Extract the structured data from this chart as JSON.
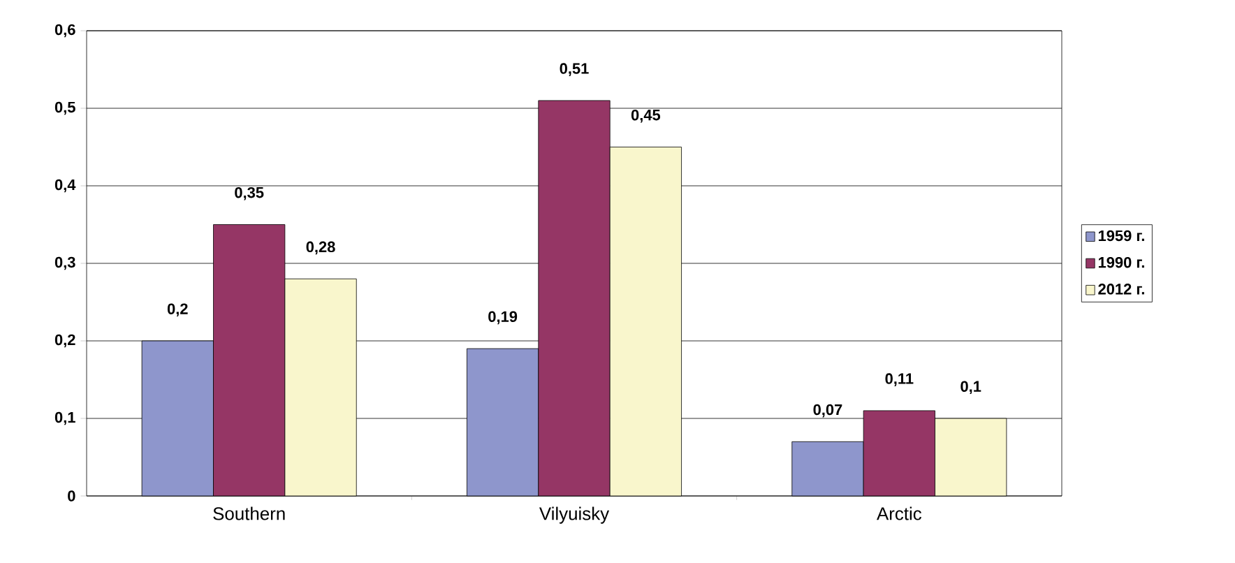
{
  "chart_data": {
    "type": "bar",
    "categories": [
      "Southern",
      "Vilyuisky",
      "Arctic"
    ],
    "series": [
      {
        "name": "1959 г.",
        "color": "#8e96cc",
        "values": [
          0.2,
          0.19,
          0.07
        ],
        "value_labels": [
          "0,2",
          "0,19",
          "0,07"
        ]
      },
      {
        "name": "1990 г.",
        "color": "#953665",
        "values": [
          0.35,
          0.51,
          0.11
        ],
        "value_labels": [
          "0,35",
          "0,51",
          "0,11"
        ]
      },
      {
        "name": "2012 г.",
        "color": "#f9f6cc",
        "values": [
          0.28,
          0.45,
          0.1
        ],
        "value_labels": [
          "0,28",
          "0,45",
          "0,1"
        ]
      }
    ],
    "ylim": [
      0,
      0.6
    ],
    "yticks": [
      {
        "value": 0,
        "label": "0"
      },
      {
        "value": 0.1,
        "label": "0,1"
      },
      {
        "value": 0.2,
        "label": "0,2"
      },
      {
        "value": 0.3,
        "label": "0,3"
      },
      {
        "value": 0.4,
        "label": "0,4"
      },
      {
        "value": 0.5,
        "label": "0,5"
      },
      {
        "value": 0.6,
        "label": "0,6"
      }
    ],
    "grid": "y",
    "legend": "right"
  }
}
